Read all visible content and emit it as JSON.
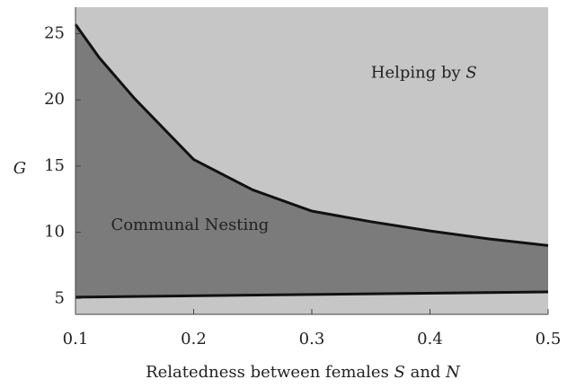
{
  "chart_data": {
    "type": "region",
    "x_label": [
      "Relatedness between females ",
      "S",
      " and ",
      "N"
    ],
    "y_label": "G",
    "annotations": [
      {
        "text": [
          "Helping by ",
          "S"
        ],
        "x": 0.35,
        "y": 22
      },
      {
        "text": [
          "Communal Nesting"
        ],
        "x": 0.13,
        "y": 10.5
      }
    ],
    "series": [
      {
        "name": "upper boundary",
        "color": "#111111",
        "x": [
          0.1,
          0.12,
          0.15,
          0.2,
          0.25,
          0.3,
          0.35,
          0.4,
          0.45,
          0.5
        ],
        "values": [
          25.7,
          23.2,
          20.1,
          15.5,
          13.2,
          11.6,
          10.8,
          10.1,
          9.5,
          9.0
        ]
      },
      {
        "name": "lower boundary",
        "color": "#111111",
        "x": [
          0.1,
          0.5
        ],
        "values": [
          5.1,
          5.5
        ]
      }
    ],
    "outer_color": "#c6c6c6",
    "inner_color": "#7b7b7b",
    "xlim": [
      0.1,
      0.5
    ],
    "ylim": [
      3.8,
      27
    ],
    "xticks": [
      0.1,
      0.2,
      0.3,
      0.4,
      0.5
    ],
    "yticks": [
      5,
      10,
      15,
      20,
      25
    ]
  }
}
